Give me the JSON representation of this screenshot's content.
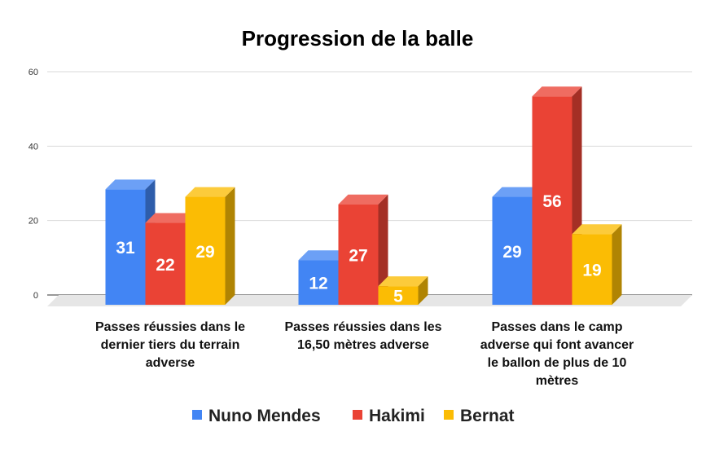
{
  "chart_data": {
    "type": "bar",
    "title": "Progression de la balle",
    "categories": [
      [
        "Passes réussies dans le",
        "dernier tiers du terrain",
        "adverse"
      ],
      [
        "Passes réussies dans les",
        "16,50 mètres adverse"
      ],
      [
        "Passes dans le camp",
        "adverse qui font avancer",
        "le ballon de plus de 10",
        "mètres"
      ]
    ],
    "series": [
      {
        "name": "Nuno Mendes",
        "values": [
          31,
          12,
          29
        ],
        "color": "#4285f4"
      },
      {
        "name": "Hakimi",
        "values": [
          22,
          27,
          56
        ],
        "color": "#ea4335"
      },
      {
        "name": "Bernat",
        "values": [
          29,
          5,
          19
        ],
        "color": "#fbbc04"
      }
    ],
    "yticks": [
      0,
      20,
      40,
      60
    ],
    "ylim": [
      0,
      60
    ],
    "grid": true,
    "legend": "bottom",
    "style": "3d-column"
  }
}
